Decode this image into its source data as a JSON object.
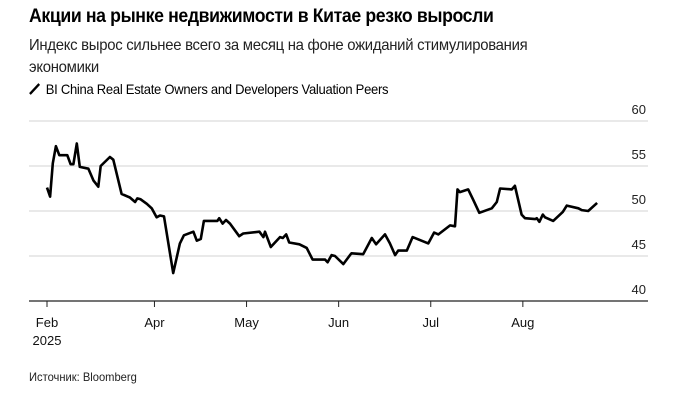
{
  "chart_data": {
    "type": "line",
    "title": "Акции на рынке недвижимости в Китае резко выросли",
    "subtitle_line1": "Индекс вырос сильнее всего за месяц на фоне ожиданий стимулирования",
    "subtitle_line2": "экономики",
    "legend": "BI China Real Estate Owners and Developers Valuation Peers",
    "source": "Источник: Bloomberg",
    "xlabel": "",
    "ylabel": "",
    "ylim": [
      40,
      60
    ],
    "yticks": [
      40,
      45,
      50,
      55,
      60
    ],
    "xticks": [
      {
        "t": 0,
        "label": "Feb",
        "sublabel": "2025"
      },
      {
        "t": 35,
        "label": "Apr"
      },
      {
        "t": 65,
        "label": "May"
      },
      {
        "t": 95,
        "label": "Jun"
      },
      {
        "t": 125,
        "label": "Jul"
      },
      {
        "t": 155,
        "label": "Aug"
      }
    ],
    "grid": true,
    "line_color": "#000000",
    "series": [
      {
        "name": "BI China Real Estate Owners and Developers Valuation Peers",
        "x": [
          0,
          1.0,
          1.9,
          2.9,
          4.0,
          6.6,
          7.7,
          8.6,
          9.7,
          10.7,
          13.5,
          15.1,
          16.7,
          17.5,
          20.5,
          21.6,
          24.3,
          27.0,
          28.7,
          29.4,
          30.5,
          32.5,
          34.1,
          35.7,
          36.8,
          38.1,
          41.1,
          43.3,
          44.6,
          47.7,
          48.8,
          50.1,
          51.1,
          55.5,
          56.1,
          57.2,
          58.3,
          59.6,
          62.6,
          63.9,
          69.2,
          70.5,
          71.0,
          72.9,
          75.9,
          76.8,
          77.9,
          78.9,
          82.2,
          84.6,
          86.5,
          90.6,
          91.4,
          92.7,
          93.8,
          96.5,
          98.7,
          99.2,
          103.0,
          105.8,
          107.2,
          110.1,
          111.7,
          113.4,
          114.4,
          117.2,
          119.1,
          124.2,
          126.1,
          127.5,
          131.3,
          132.9,
          133.7,
          134.5,
          137.2,
          138.9,
          140.8,
          144.9,
          146.5,
          147.6,
          151.4,
          152.4,
          154.6,
          155.7,
          159.0,
          159.5,
          160.4,
          161.5,
          162.2,
          164.9,
          168.0,
          169.3,
          173.1,
          174.2,
          176.3,
          179.2
        ],
        "values": [
          52.6,
          51.6,
          55.3,
          57.2,
          56.2,
          56.2,
          55.2,
          55.2,
          57.5,
          54.9,
          54.7,
          53.4,
          52.7,
          55.0,
          56.0,
          55.7,
          51.9,
          51.5,
          51.0,
          51.4,
          51.3,
          50.8,
          50.3,
          49.3,
          49.5,
          49.4,
          43.1,
          46.4,
          47.3,
          47.7,
          46.7,
          46.9,
          48.9,
          48.9,
          49.2,
          48.6,
          49.0,
          48.6,
          47.2,
          47.5,
          47.7,
          47.1,
          47.7,
          46.0,
          47.1,
          47.0,
          47.4,
          46.5,
          46.3,
          45.9,
          44.6,
          44.6,
          44.3,
          45.1,
          45.0,
          44.1,
          45.1,
          45.3,
          45.2,
          47.0,
          46.3,
          47.4,
          46.4,
          45.1,
          45.6,
          45.6,
          47.1,
          46.4,
          47.6,
          47.4,
          48.4,
          48.3,
          52.4,
          52.1,
          52.4,
          51.2,
          49.8,
          50.3,
          51.0,
          52.5,
          52.4,
          52.8,
          49.6,
          49.2,
          49.1,
          49.2,
          48.8,
          49.6,
          49.3,
          48.9,
          49.9,
          50.6,
          50.3,
          50.1,
          50.0,
          50.9
        ]
      }
    ]
  }
}
